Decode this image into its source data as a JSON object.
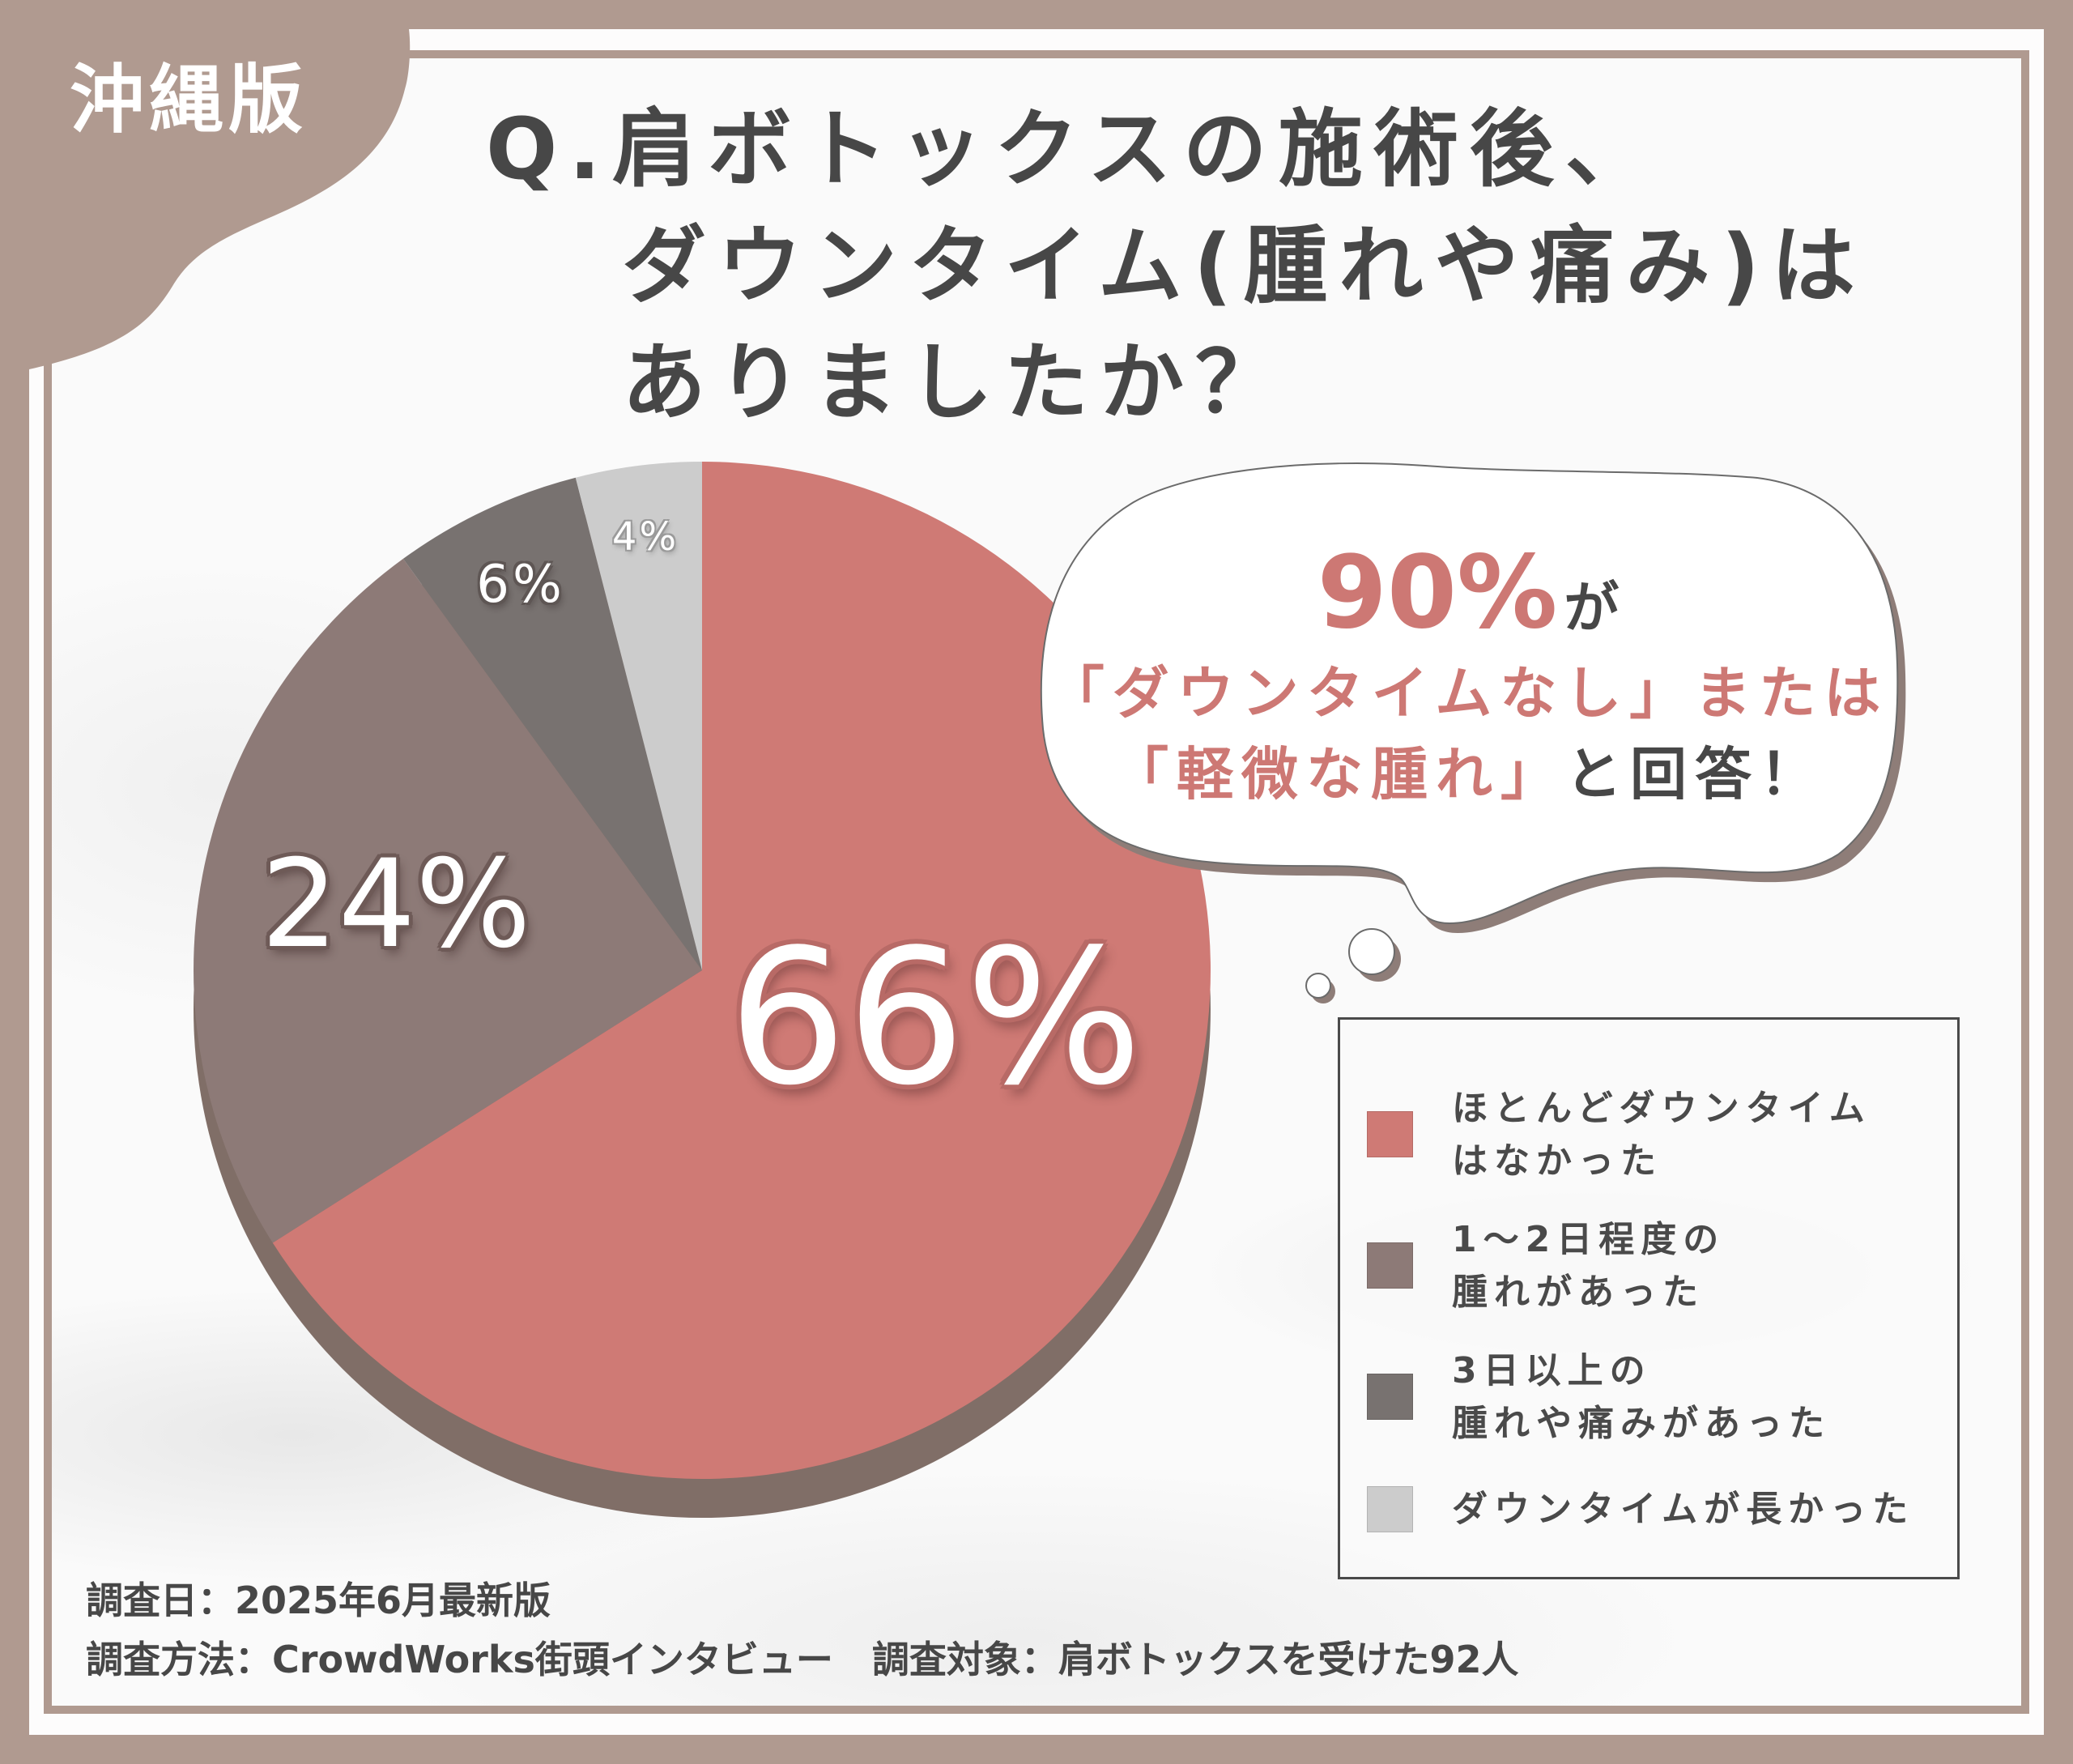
{
  "badge": {
    "label": "沖縄版"
  },
  "title": {
    "prefix": "Q.",
    "lines": [
      "肩ボトックスの施術後、",
      "ダウンタイム(腫れや痛み)は",
      "ありましたか？"
    ]
  },
  "colors": {
    "frame": "#b09a90",
    "title_text": "#474747",
    "accent": "#cd7874",
    "pie_shadow": "#806e67",
    "bubble_shadow": "#8e7d78"
  },
  "callout": {
    "highlight_value": "90%",
    "highlight_suffix": "が",
    "line2": "「ダウンタイムなし」または",
    "line3_highlight": "「軽微な腫れ」",
    "line3_suffix": "と回答！"
  },
  "legend": {
    "items": [
      {
        "lines": [
          "ほとんどダウンタイム",
          "はなかった"
        ],
        "color": "#cf7a75"
      },
      {
        "lines": [
          "1〜2日程度の",
          "腫れがあった"
        ],
        "color": "#8d7a77"
      },
      {
        "lines": [
          "3日以上の",
          "腫れや痛みがあった"
        ],
        "color": "#787270"
      },
      {
        "lines": [
          "ダウンタイムが長かった"
        ],
        "color": "#cccccc"
      }
    ]
  },
  "footer": {
    "date": "調査日：2025年6月最新版",
    "method": "調査方法：CrowdWorks街頭インタビュー",
    "target": "調査対象：肩ボトックスを受けた92人"
  },
  "chart_data": {
    "type": "pie",
    "title": "Q.肩ボトックスの施術後、ダウンタイム(腫れや痛み)はありましたか？",
    "categories": [
      "ほとんどダウンタイムはなかった",
      "1〜2日程度の腫れがあった",
      "3日以上の腫れや痛みがあった",
      "ダウンタイムが長かった"
    ],
    "values": [
      66,
      24,
      6,
      4
    ],
    "labels": [
      "66%",
      "24%",
      "6%",
      "4%"
    ],
    "colors": [
      "#cf7a75",
      "#8d7a77",
      "#787270",
      "#cccccc"
    ],
    "start_angle": "12 o'clock, clockwise",
    "legend_position": "right-bottom",
    "sample_size": 92
  }
}
